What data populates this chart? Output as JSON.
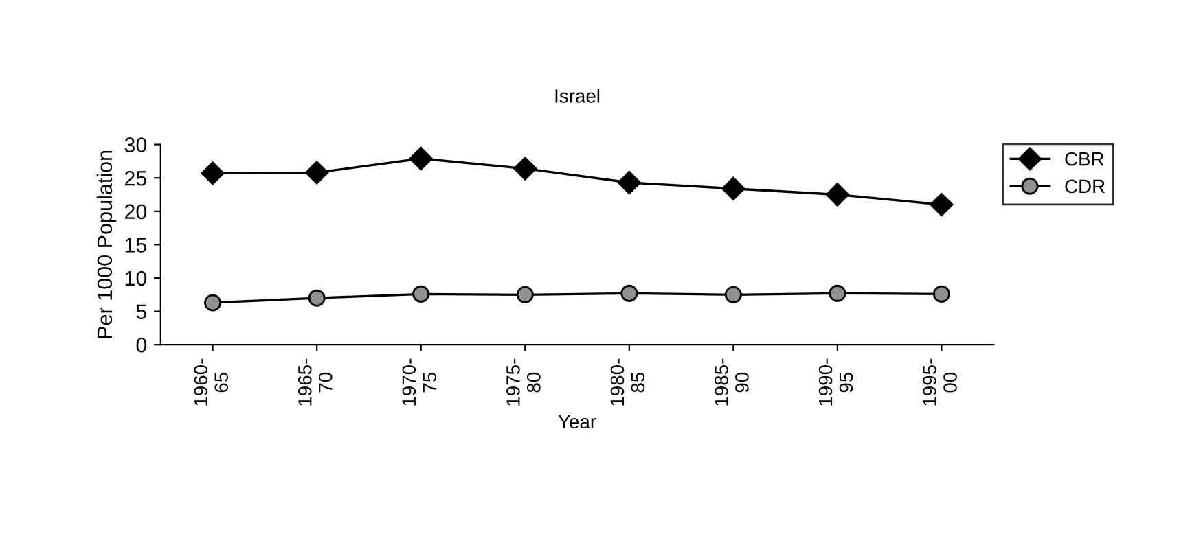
{
  "chart_data": {
    "type": "line",
    "title": "Israel",
    "xlabel": "Year",
    "ylabel": "Per 1000 Population",
    "categories": [
      "1960-\n65",
      "1965-\n70",
      "1970-\n75",
      "1975-\n80",
      "1980-\n85",
      "1985-\n90",
      "1990-\n95",
      "1995-\n00"
    ],
    "series": [
      {
        "name": "CBR",
        "color": "#000000",
        "marker": "diamond",
        "values": [
          25.7,
          25.8,
          27.9,
          26.4,
          24.3,
          23.4,
          22.5,
          21.0
        ]
      },
      {
        "name": "CDR",
        "color": "#909090",
        "marker": "circle",
        "values": [
          6.3,
          7.0,
          7.6,
          7.5,
          7.7,
          7.5,
          7.7,
          7.6
        ]
      }
    ],
    "ylim": [
      0,
      30
    ],
    "yticks": [
      0,
      5,
      10,
      15,
      20,
      25,
      30
    ],
    "grid": false,
    "legend": "top right",
    "line_style": "solid"
  }
}
